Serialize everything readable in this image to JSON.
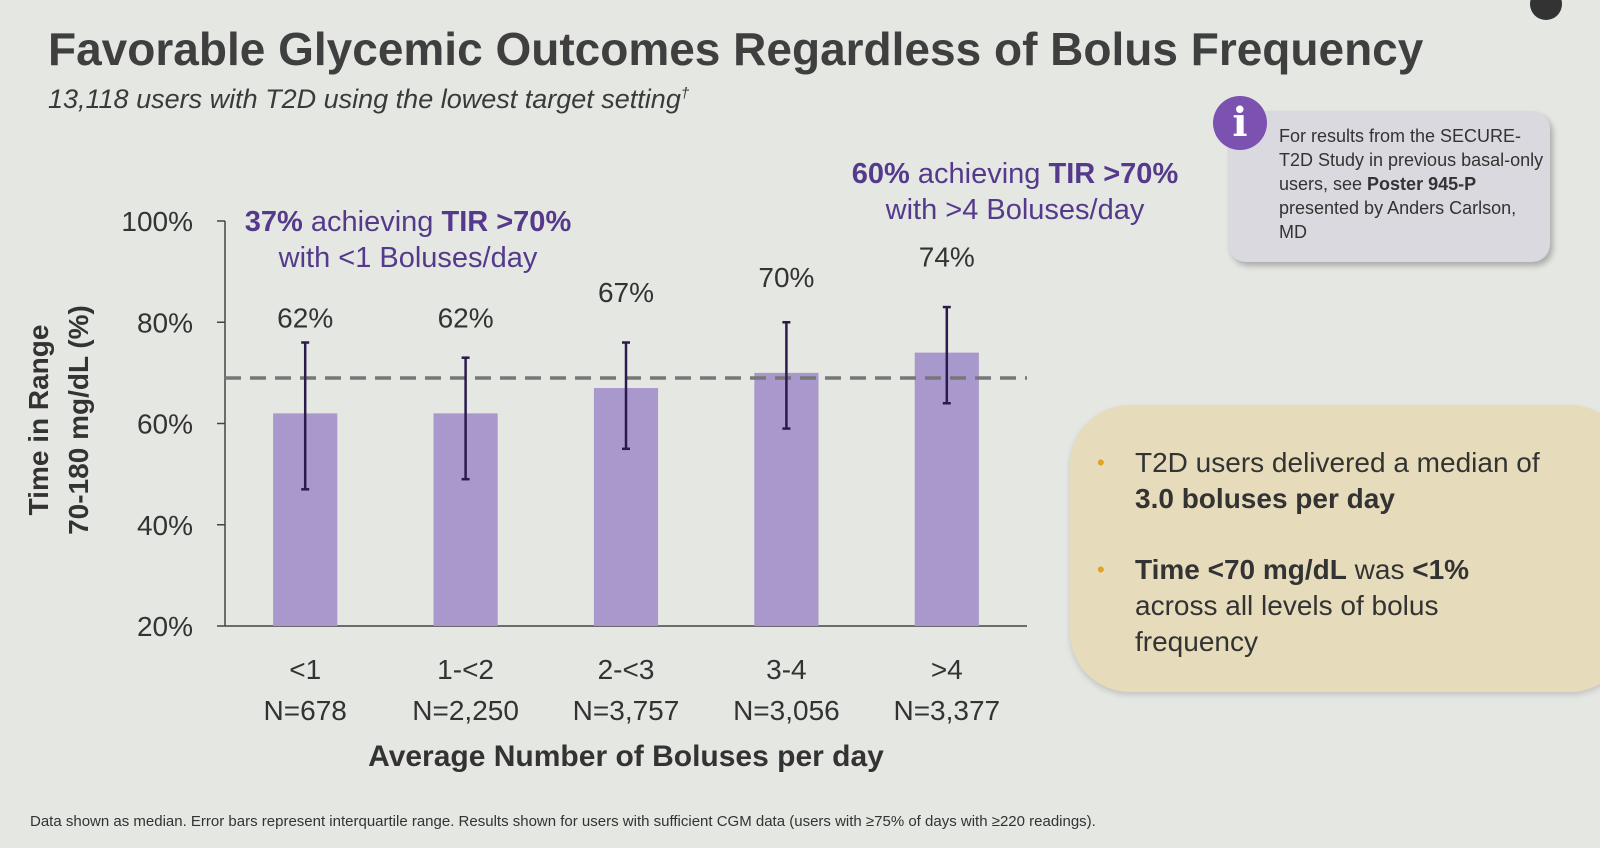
{
  "slide": {
    "title": "Favorable Glycemic Outcomes Regardless of Bolus Frequency",
    "subtitle": "13,118 users with T2D using the lowest target setting",
    "subtitle_mark": "†",
    "info_box": [
      "For results from the SECURE-T2D Study in previous basal-only users, see ",
      "Poster 945-P",
      " presented by Anders Carlson, MD"
    ],
    "bullets": [
      [
        "T2D users delivered a median of ",
        "3.0 boluses per day"
      ],
      [
        "Time <70 mg/dL",
        " was ",
        "<1%",
        " across all levels of bolus frequency"
      ]
    ],
    "footnote": "Data shown as median. Error bars represent interquartile range. Results shown for users with sufficient CGM data (users with ≥75% of days with ≥220 readings)."
  },
  "chart_data": {
    "type": "bar",
    "categories": [
      "<1",
      "1-<2",
      "2-<3",
      "3-4",
      ">4"
    ],
    "n_labels": [
      "N=678",
      "N=2,250",
      "N=3,757",
      "N=3,056",
      "N=3,377"
    ],
    "values": [
      62,
      62,
      67,
      70,
      74
    ],
    "value_labels": [
      "62%",
      "62%",
      "67%",
      "70%",
      "74%"
    ],
    "iqr_low": [
      47,
      49,
      55,
      59,
      64
    ],
    "iqr_high": [
      76,
      73,
      76,
      80,
      83
    ],
    "reference_line": 69,
    "color": "#a898cc",
    "error_color": "#2b1b4d",
    "ylim": [
      20,
      100
    ],
    "yticks": [
      {
        "value": 20,
        "label": "20%"
      },
      {
        "value": 40,
        "label": "40%"
      },
      {
        "value": 60,
        "label": "60%"
      },
      {
        "value": 80,
        "label": "80%"
      },
      {
        "value": 100,
        "label": "100%"
      }
    ],
    "y_label": [
      "Time in Range",
      "70-180 mg/dL (%)"
    ],
    "x_label": "Average Number of Boluses per day",
    "annotations": [
      [
        [
          "37%",
          " achieving ",
          "TIR >70%"
        ],
        [
          "with <1 Boluses/day"
        ]
      ],
      [
        [
          "60%",
          " achieving ",
          "TIR >70%"
        ],
        [
          "with >4 Boluses/day"
        ]
      ]
    ]
  }
}
